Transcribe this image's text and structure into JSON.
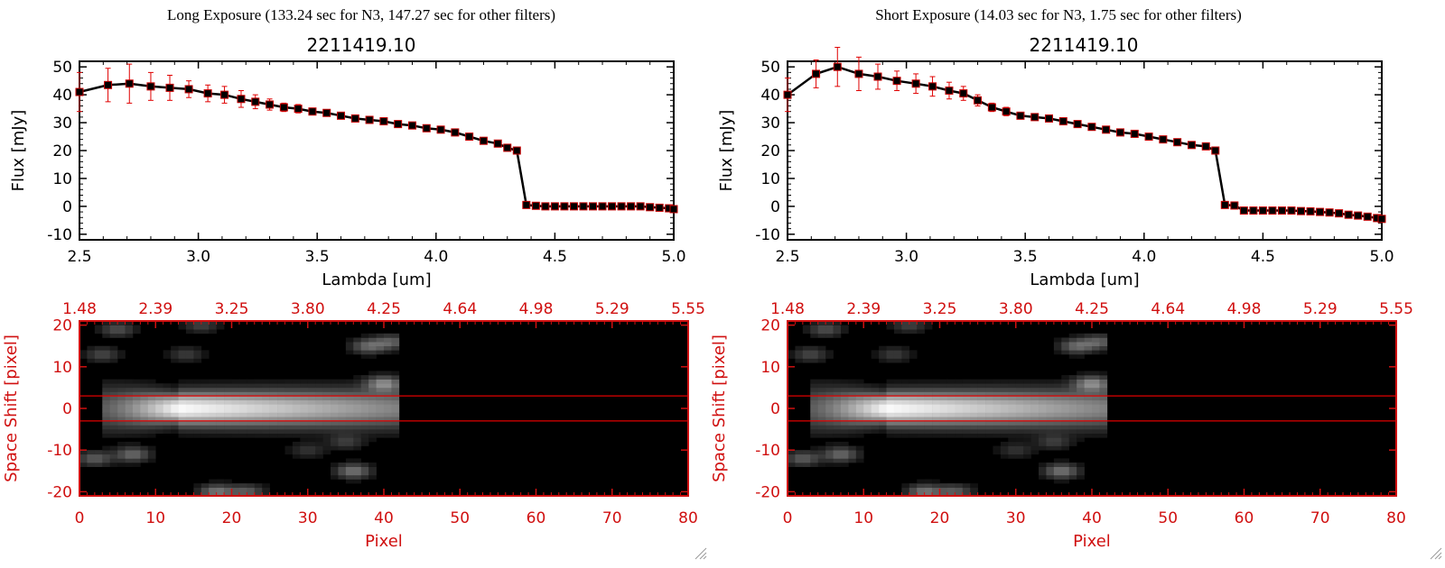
{
  "panels": [
    {
      "exposure_title": "Long Exposure (133.24 sec for N3, 147.27 sec for other filters)",
      "object_id": "2211419.10",
      "resize_grip_icon": "resize-grip-icon"
    },
    {
      "exposure_title": "Short Exposure (14.03 sec for N3, 1.75 sec for other filters)",
      "object_id": "2211419.10",
      "resize_grip_icon": "resize-grip-icon"
    }
  ],
  "colors": {
    "axis_black": "#000000",
    "error_red": "#e00000",
    "image_axis_red": "#d01010",
    "marker_red": "#c80000"
  },
  "chart_data": [
    {
      "type": "line",
      "title": "2211419.10",
      "xlabel": "Lambda [um]",
      "ylabel": "Flux [mJy]",
      "xlim": [
        2.5,
        5.0
      ],
      "ylim": [
        -12,
        52
      ],
      "xticks": [
        "2.5",
        "3.0",
        "3.5",
        "4.0",
        "4.5",
        "5.0"
      ],
      "yticks": [
        "-10",
        "0",
        "10",
        "20",
        "30",
        "40",
        "50"
      ],
      "x": [
        2.5,
        2.62,
        2.71,
        2.8,
        2.88,
        2.96,
        3.04,
        3.11,
        3.18,
        3.24,
        3.3,
        3.36,
        3.42,
        3.48,
        3.54,
        3.6,
        3.66,
        3.72,
        3.78,
        3.84,
        3.9,
        3.96,
        4.02,
        4.08,
        4.14,
        4.2,
        4.26,
        4.3,
        4.34,
        4.38,
        4.42,
        4.46,
        4.5,
        4.54,
        4.58,
        4.62,
        4.66,
        4.7,
        4.74,
        4.78,
        4.82,
        4.86,
        4.9,
        4.94,
        4.98,
        5.0
      ],
      "y": [
        41,
        43.5,
        44,
        43,
        42.5,
        42,
        40.5,
        40,
        38.5,
        37.5,
        36.5,
        35.5,
        35,
        34,
        33.5,
        32.5,
        31.5,
        31,
        30.5,
        29.5,
        29,
        28,
        27.5,
        26.5,
        25,
        23.5,
        22.5,
        21,
        20,
        0.5,
        0.2,
        0,
        0,
        0,
        0,
        0,
        0,
        0,
        0,
        0,
        0,
        0,
        -0.3,
        -0.5,
        -0.7,
        -1
      ],
      "yerr": [
        7,
        6,
        7,
        5,
        4.5,
        3,
        3,
        3,
        3,
        2.5,
        2,
        1.5,
        1.5,
        1,
        1,
        1,
        1,
        1,
        1,
        1,
        1,
        1,
        1,
        1,
        1,
        1,
        1,
        1,
        1,
        1,
        1,
        1,
        1,
        1,
        1,
        1,
        1,
        1,
        1,
        1,
        1,
        1,
        1,
        1,
        1,
        1
      ]
    },
    {
      "type": "line",
      "title": "2211419.10",
      "xlabel": "Lambda [um]",
      "ylabel": "Flux [mJy]",
      "xlim": [
        2.5,
        5.0
      ],
      "ylim": [
        -12,
        52
      ],
      "xticks": [
        "2.5",
        "3.0",
        "3.5",
        "4.0",
        "4.5",
        "5.0"
      ],
      "yticks": [
        "-10",
        "0",
        "10",
        "20",
        "30",
        "40",
        "50"
      ],
      "x": [
        2.5,
        2.62,
        2.71,
        2.8,
        2.88,
        2.96,
        3.04,
        3.11,
        3.18,
        3.24,
        3.3,
        3.36,
        3.42,
        3.48,
        3.54,
        3.6,
        3.66,
        3.72,
        3.78,
        3.84,
        3.9,
        3.96,
        4.02,
        4.08,
        4.14,
        4.2,
        4.26,
        4.3,
        4.34,
        4.38,
        4.42,
        4.46,
        4.5,
        4.54,
        4.58,
        4.62,
        4.66,
        4.7,
        4.74,
        4.78,
        4.82,
        4.86,
        4.9,
        4.94,
        4.98,
        5.0
      ],
      "y": [
        40,
        47.5,
        50,
        47.5,
        46.5,
        45,
        44,
        43,
        41.5,
        40.5,
        38,
        35.5,
        34,
        32.5,
        32,
        31.5,
        30.5,
        29.5,
        28.5,
        27.5,
        26.5,
        26,
        25,
        24,
        23,
        22,
        21.5,
        20,
        0.5,
        0.3,
        -1.5,
        -1.5,
        -1.5,
        -1.5,
        -1.5,
        -1.5,
        -1.7,
        -1.8,
        -2,
        -2.2,
        -2.5,
        -3,
        -3.3,
        -3.7,
        -4.2,
        -4.5
      ],
      "yerr": [
        6,
        5,
        7,
        6,
        4.5,
        3.5,
        3.5,
        3.5,
        3,
        2.5,
        2,
        1.5,
        1.5,
        1,
        1,
        1,
        1,
        1,
        1,
        1,
        1,
        1,
        1,
        1,
        1,
        1,
        1,
        1,
        1,
        1,
        1,
        1,
        1,
        1,
        1,
        1,
        1,
        1,
        1,
        1,
        1,
        1,
        1,
        1,
        1,
        1
      ]
    },
    {
      "type": "heatmap",
      "xlabel": "Pixel",
      "ylabel": "Space Shift [pixel]",
      "xlim": [
        0,
        80
      ],
      "ylim": [
        -21,
        21
      ],
      "xticks": [
        "0",
        "10",
        "20",
        "30",
        "40",
        "50",
        "60",
        "70",
        "80"
      ],
      "yticks": [
        "-20",
        "-10",
        "0",
        "10",
        "20"
      ],
      "top_axis_ticks": [
        "1.48",
        "2.39",
        "3.25",
        "3.80",
        "4.25",
        "4.64",
        "4.98",
        "5.29",
        "5.55"
      ],
      "aperture_lines": [
        -3,
        3
      ],
      "bright_region": {
        "x_range": [
          3,
          42
        ],
        "y_center": 0,
        "peak_x": 13
      },
      "blobs": [
        {
          "x": 5,
          "y": 19,
          "level": 0.25
        },
        {
          "x": 16,
          "y": 20,
          "level": 0.2
        },
        {
          "x": 3,
          "y": 13,
          "level": 0.22
        },
        {
          "x": 14,
          "y": 13,
          "level": 0.18
        },
        {
          "x": 38,
          "y": 15,
          "level": 0.35
        },
        {
          "x": 41,
          "y": 16,
          "level": 0.3
        },
        {
          "x": 40,
          "y": 6,
          "level": 0.45
        },
        {
          "x": 2,
          "y": -12,
          "level": 0.3
        },
        {
          "x": 7,
          "y": -11,
          "level": 0.35
        },
        {
          "x": 36,
          "y": -15,
          "level": 0.4
        },
        {
          "x": 18,
          "y": -20,
          "level": 0.4
        },
        {
          "x": 22,
          "y": -20,
          "level": 0.3
        },
        {
          "x": 30,
          "y": -10,
          "level": 0.15
        },
        {
          "x": 35,
          "y": -8,
          "level": 0.18
        }
      ]
    },
    {
      "type": "heatmap",
      "xlabel": "Pixel",
      "ylabel": "Space Shift [pixel]",
      "xlim": [
        0,
        80
      ],
      "ylim": [
        -21,
        21
      ],
      "xticks": [
        "0",
        "10",
        "20",
        "30",
        "40",
        "50",
        "60",
        "70",
        "80"
      ],
      "yticks": [
        "-20",
        "-10",
        "0",
        "10",
        "20"
      ],
      "top_axis_ticks": [
        "1.48",
        "2.39",
        "3.25",
        "3.80",
        "4.25",
        "4.64",
        "4.98",
        "5.29",
        "5.55"
      ],
      "aperture_lines": [
        -3,
        3
      ],
      "bright_region": {
        "x_range": [
          3,
          42
        ],
        "y_center": 0,
        "peak_x": 13
      },
      "blobs": [
        {
          "x": 5,
          "y": 19,
          "level": 0.25
        },
        {
          "x": 16,
          "y": 20,
          "level": 0.2
        },
        {
          "x": 3,
          "y": 13,
          "level": 0.22
        },
        {
          "x": 14,
          "y": 13,
          "level": 0.18
        },
        {
          "x": 38,
          "y": 15,
          "level": 0.35
        },
        {
          "x": 41,
          "y": 16,
          "level": 0.3
        },
        {
          "x": 40,
          "y": 6,
          "level": 0.45
        },
        {
          "x": 2,
          "y": -12,
          "level": 0.3
        },
        {
          "x": 7,
          "y": -11,
          "level": 0.35
        },
        {
          "x": 36,
          "y": -15,
          "level": 0.4
        },
        {
          "x": 18,
          "y": -20,
          "level": 0.4
        },
        {
          "x": 22,
          "y": -20,
          "level": 0.3
        },
        {
          "x": 30,
          "y": -10,
          "level": 0.15
        },
        {
          "x": 35,
          "y": -8,
          "level": 0.18
        }
      ]
    }
  ]
}
